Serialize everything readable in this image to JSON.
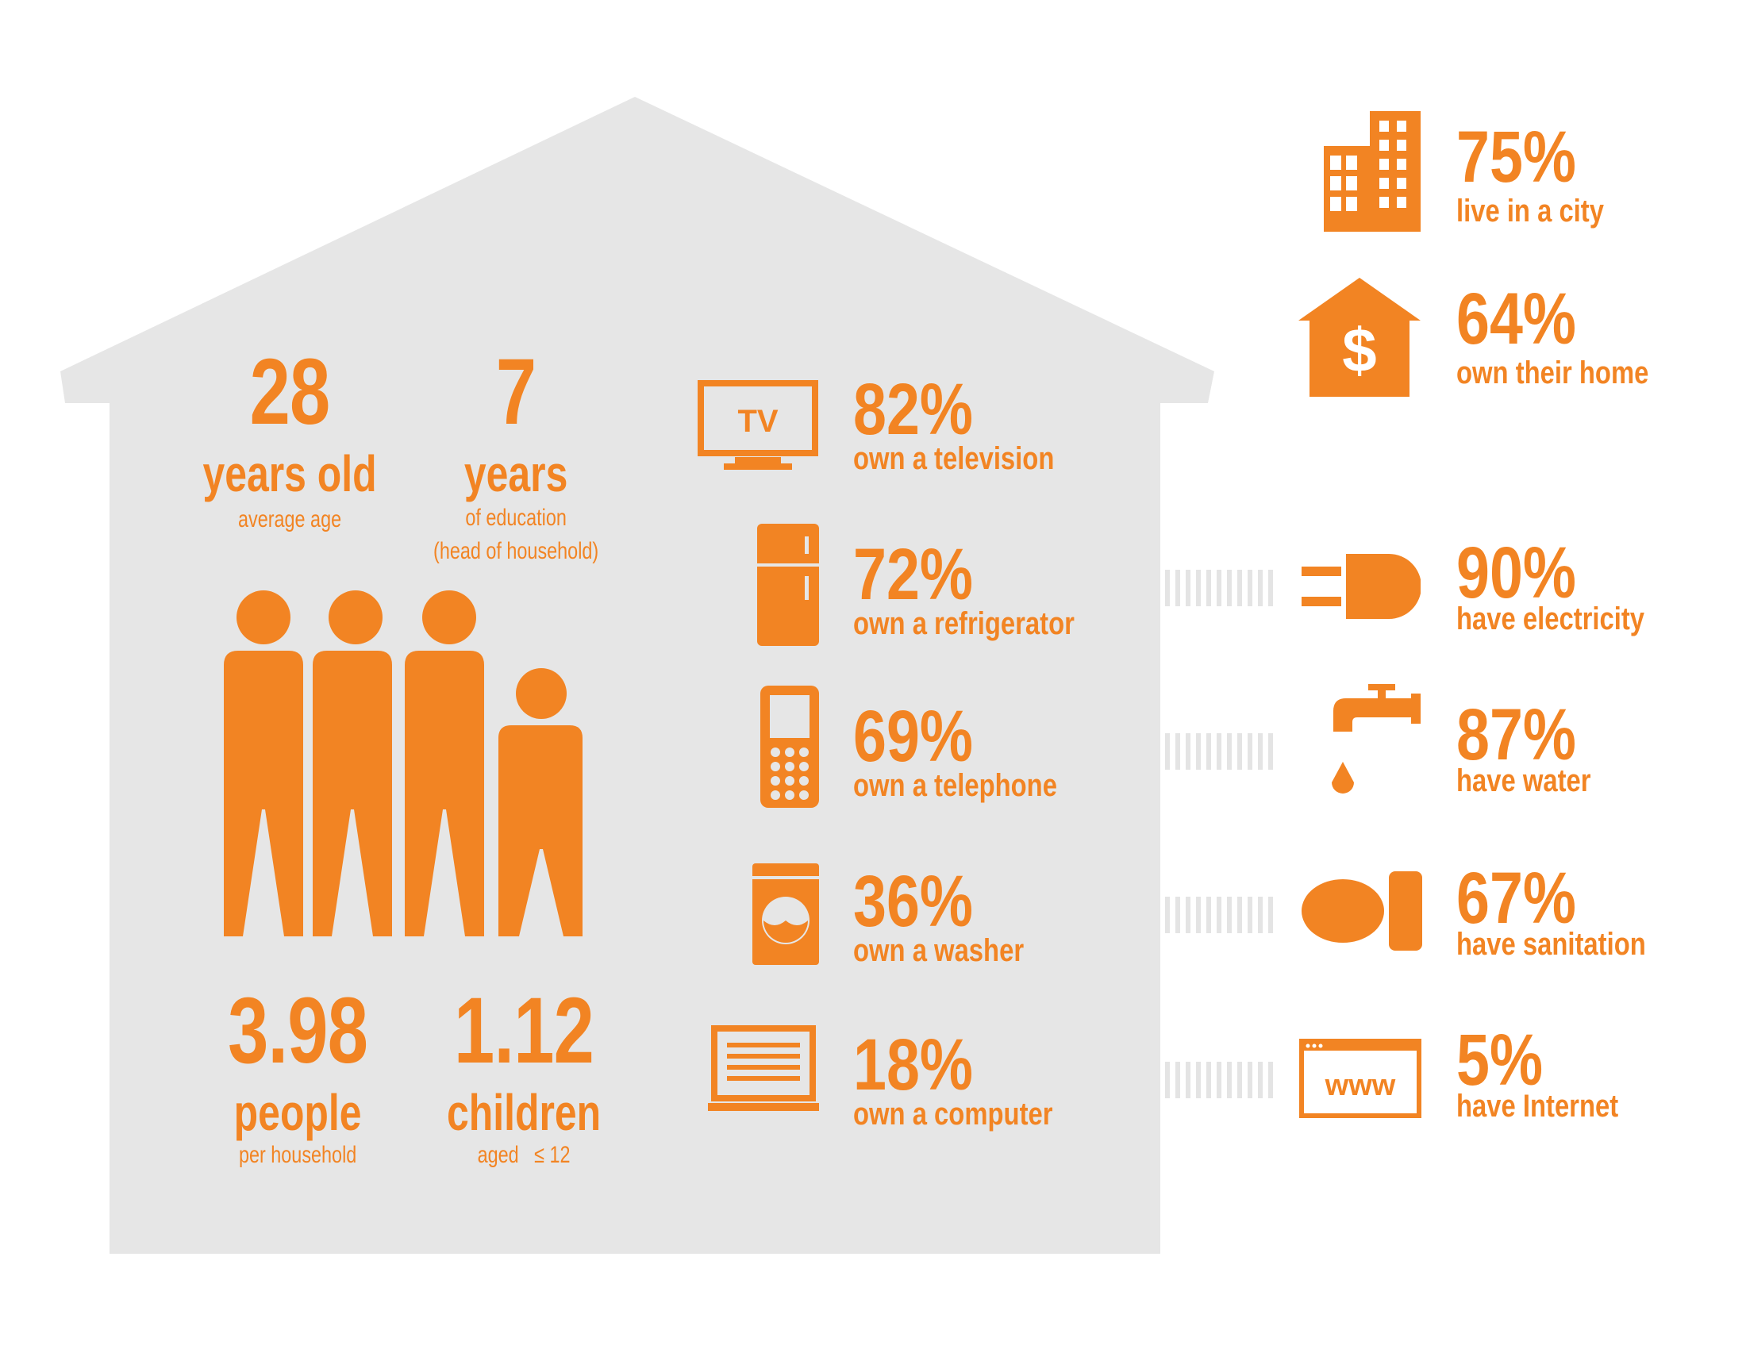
{
  "colors": {
    "accent": "#F28423",
    "house": "#E6E6E6",
    "connector": "#E4E4E4"
  },
  "household": {
    "age": {
      "value": "28",
      "label": "years old",
      "sub": "average age"
    },
    "education": {
      "value": "7",
      "label": "years",
      "sub": "of education",
      "sub2": "(head of household)"
    },
    "people": {
      "value": "3.98",
      "label": "people",
      "sub": "per household"
    },
    "children": {
      "value": "1.12",
      "label": "children",
      "sub": "aged   ≤ 12"
    }
  },
  "appliances": [
    {
      "icon": "tv-icon",
      "icon_text": "TV",
      "pct": "82%",
      "label": "own a television",
      "value": 82
    },
    {
      "icon": "refrigerator-icon",
      "pct": "72%",
      "label": "own a refrigerator",
      "value": 72
    },
    {
      "icon": "telephone-icon",
      "pct": "69%",
      "label": "own a telephone",
      "value": 69
    },
    {
      "icon": "washer-icon",
      "pct": "36%",
      "label": "own a washer",
      "value": 36
    },
    {
      "icon": "computer-icon",
      "pct": "18%",
      "label": "own a computer",
      "value": 18
    }
  ],
  "housing": [
    {
      "icon": "city-buildings-icon",
      "pct": "75%",
      "label": "live in a city",
      "value": 75
    },
    {
      "icon": "house-dollar-icon",
      "icon_text": "$",
      "pct": "64%",
      "label": "own their home",
      "value": 64
    }
  ],
  "utilities": [
    {
      "icon": "electric-plug-icon",
      "pct": "90%",
      "label": "have electricity",
      "value": 90
    },
    {
      "icon": "water-faucet-icon",
      "pct": "87%",
      "label": "have water",
      "value": 87
    },
    {
      "icon": "toilet-icon",
      "pct": "67%",
      "label": "have sanitation",
      "value": 67
    },
    {
      "icon": "browser-www-icon",
      "icon_text": "www",
      "pct": "5%",
      "label": "have Internet",
      "value": 5
    }
  ]
}
